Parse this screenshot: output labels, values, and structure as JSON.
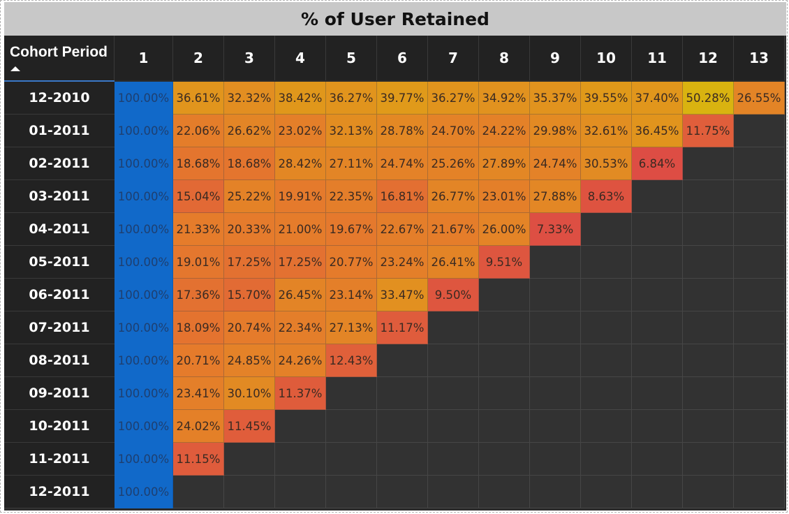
{
  "chart_data": {
    "type": "heatmap",
    "title": "% of User Retained",
    "row_header": "Cohort Period",
    "columns": [
      "1",
      "2",
      "3",
      "4",
      "5",
      "6",
      "7",
      "8",
      "9",
      "10",
      "11",
      "12",
      "13"
    ],
    "rows": [
      {
        "label": "12-2010",
        "values": [
          "100.00%",
          "36.61%",
          "32.32%",
          "38.42%",
          "36.27%",
          "39.77%",
          "36.27%",
          "34.92%",
          "35.37%",
          "39.55%",
          "37.40%",
          "50.28%",
          "26.55%"
        ]
      },
      {
        "label": "01-2011",
        "values": [
          "100.00%",
          "22.06%",
          "26.62%",
          "23.02%",
          "32.13%",
          "28.78%",
          "24.70%",
          "24.22%",
          "29.98%",
          "32.61%",
          "36.45%",
          "11.75%"
        ]
      },
      {
        "label": "02-2011",
        "values": [
          "100.00%",
          "18.68%",
          "18.68%",
          "28.42%",
          "27.11%",
          "24.74%",
          "25.26%",
          "27.89%",
          "24.74%",
          "30.53%",
          "6.84%"
        ]
      },
      {
        "label": "03-2011",
        "values": [
          "100.00%",
          "15.04%",
          "25.22%",
          "19.91%",
          "22.35%",
          "16.81%",
          "26.77%",
          "23.01%",
          "27.88%",
          "8.63%"
        ]
      },
      {
        "label": "04-2011",
        "values": [
          "100.00%",
          "21.33%",
          "20.33%",
          "21.00%",
          "19.67%",
          "22.67%",
          "21.67%",
          "26.00%",
          "7.33%"
        ]
      },
      {
        "label": "05-2011",
        "values": [
          "100.00%",
          "19.01%",
          "17.25%",
          "17.25%",
          "20.77%",
          "23.24%",
          "26.41%",
          "9.51%"
        ]
      },
      {
        "label": "06-2011",
        "values": [
          "100.00%",
          "17.36%",
          "15.70%",
          "26.45%",
          "23.14%",
          "33.47%",
          "9.50%"
        ]
      },
      {
        "label": "07-2011",
        "values": [
          "100.00%",
          "18.09%",
          "20.74%",
          "22.34%",
          "27.13%",
          "11.17%"
        ]
      },
      {
        "label": "08-2011",
        "values": [
          "100.00%",
          "20.71%",
          "24.85%",
          "24.26%",
          "12.43%"
        ]
      },
      {
        "label": "09-2011",
        "values": [
          "100.00%",
          "23.41%",
          "30.10%",
          "11.37%"
        ]
      },
      {
        "label": "10-2011",
        "values": [
          "100.00%",
          "24.02%",
          "11.45%"
        ]
      },
      {
        "label": "11-2011",
        "values": [
          "100.00%",
          "11.15%"
        ]
      },
      {
        "label": "12-2011",
        "values": [
          "100.00%"
        ]
      }
    ],
    "colors": {
      "first_column": "#1169c9",
      "low": "#dc4a45",
      "mid": "#e57a2c",
      "high": "#e09a1a",
      "max": "#d9b310",
      "empty": "#323232",
      "header_bg": "#222222",
      "title_bg": "#c8c8c8"
    },
    "sort": "ascending"
  }
}
